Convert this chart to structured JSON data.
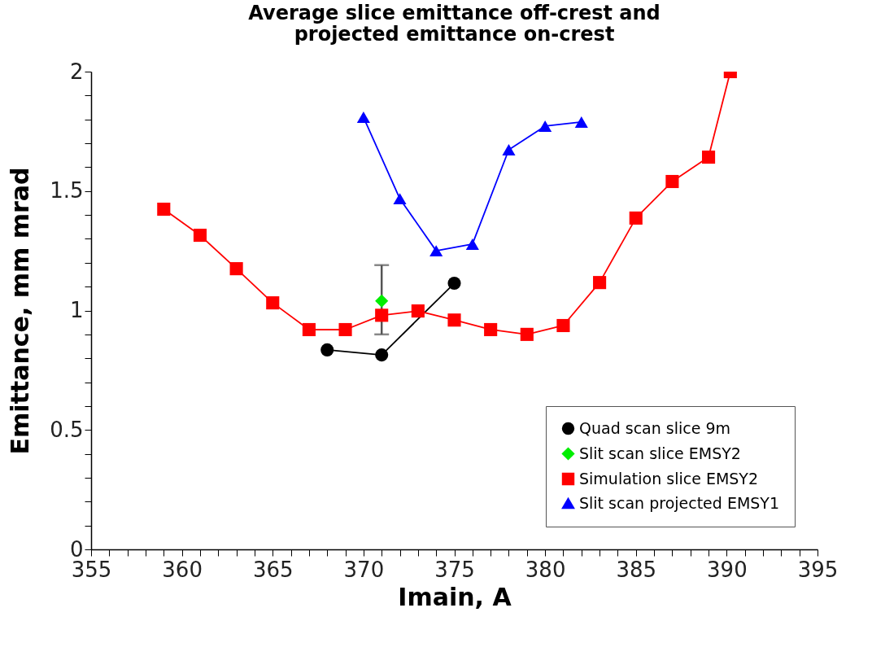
{
  "chart_data": {
    "type": "line",
    "title": "Average slice emittance off-crest and\nprojected emittance on-crest",
    "xlabel": "Imain, A",
    "ylabel": "Emittance, mm mrad",
    "xlim": [
      355,
      395
    ],
    "ylim": [
      0,
      2
    ],
    "xticks": [
      355,
      {
        "value": 356,
        "label": null
      },
      {
        "value": 357,
        "label": null
      },
      {
        "value": 358,
        "label": null
      },
      {
        "value": 359,
        "label": null
      },
      360,
      {
        "value": 361,
        "label": null
      },
      {
        "value": 362,
        "label": null
      },
      {
        "value": 363,
        "label": null
      },
      {
        "value": 364,
        "label": null
      },
      365,
      {
        "value": 366,
        "label": null
      },
      {
        "value": 367,
        "label": null
      },
      {
        "value": 368,
        "label": null
      },
      {
        "value": 369,
        "label": null
      },
      370,
      {
        "value": 371,
        "label": null
      },
      {
        "value": 372,
        "label": null
      },
      {
        "value": 373,
        "label": null
      },
      {
        "value": 374,
        "label": null
      },
      375,
      {
        "value": 376,
        "label": null
      },
      {
        "value": 377,
        "label": null
      },
      {
        "value": 378,
        "label": null
      },
      {
        "value": 379,
        "label": null
      },
      380,
      {
        "value": 381,
        "label": null
      },
      {
        "value": 382,
        "label": null
      },
      {
        "value": 383,
        "label": null
      },
      {
        "value": 384,
        "label": null
      },
      385,
      {
        "value": 386,
        "label": null
      },
      {
        "value": 387,
        "label": null
      },
      {
        "value": 388,
        "label": null
      },
      {
        "value": 389,
        "label": null
      },
      390,
      {
        "value": 391,
        "label": null
      },
      {
        "value": 392,
        "label": null
      },
      {
        "value": 393,
        "label": null
      },
      {
        "value": 394,
        "label": null
      },
      395
    ],
    "yticks": [
      0,
      {
        "value": 0.1,
        "label": null
      },
      {
        "value": 0.2,
        "label": null
      },
      {
        "value": 0.3,
        "label": null
      },
      {
        "value": 0.4,
        "label": null
      },
      0.5,
      {
        "value": 0.6,
        "label": null
      },
      {
        "value": 0.7,
        "label": null
      },
      {
        "value": 0.8,
        "label": null
      },
      {
        "value": 0.9,
        "label": null
      },
      1,
      {
        "value": 1.1,
        "label": null
      },
      {
        "value": 1.2,
        "label": null
      },
      {
        "value": 1.3,
        "label": null
      },
      {
        "value": 1.4,
        "label": null
      },
      1.5,
      {
        "value": 1.6,
        "label": null
      },
      {
        "value": 1.7,
        "label": null
      },
      {
        "value": 1.8,
        "label": null
      },
      {
        "value": 1.9,
        "label": null
      },
      2
    ],
    "grid": false,
    "legend": "bottom right",
    "line_style": "solid",
    "series": [
      {
        "name": "Quad scan slice 9m",
        "color": "#000000",
        "marker": "circle",
        "x": [
          368,
          371,
          375
        ],
        "values": [
          0.835,
          0.814,
          1.114
        ]
      },
      {
        "name": "Slit scan slice EMSY2",
        "color": "#00ee00",
        "marker": "diamond",
        "x": [
          371
        ],
        "values": [
          1.04
        ],
        "errors": [
          [
            0.9,
            1.19
          ]
        ]
      },
      {
        "name": "Simulation slice EMSY2",
        "color": "#ff0000",
        "marker": "square",
        "x": [
          359,
          361,
          363,
          365,
          367,
          369,
          371,
          373,
          375,
          377,
          379,
          381,
          383,
          385,
          387,
          389,
          390.2
        ],
        "values": [
          1.424,
          1.315,
          1.175,
          1.032,
          0.92,
          0.92,
          0.98,
          0.998,
          0.96,
          0.92,
          0.9,
          0.937,
          1.117,
          1.387,
          1.54,
          1.642,
          2.0
        ]
      },
      {
        "name": "Slit scan projected EMSY1",
        "color": "#0000ff",
        "marker": "triangle",
        "x": [
          370,
          372,
          374,
          376,
          378,
          380,
          382
        ],
        "values": [
          1.809,
          1.468,
          1.25,
          1.278,
          1.673,
          1.772,
          1.789
        ]
      }
    ]
  }
}
